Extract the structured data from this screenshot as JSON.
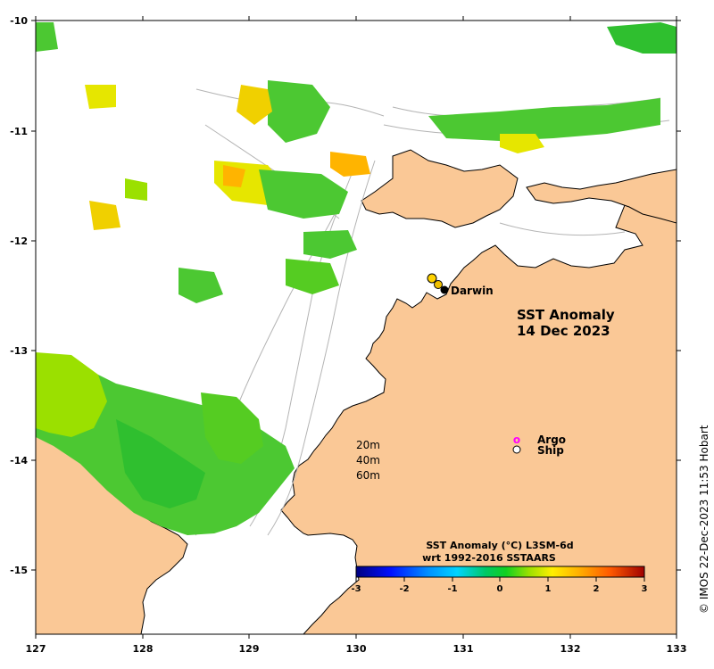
{
  "title": {
    "line1": "SST Anomaly",
    "line2": "14 Dec 2023"
  },
  "place_label": "Darwin",
  "x_axis": {
    "ticks": [
      "127",
      "128",
      "129",
      "130",
      "131",
      "132",
      "133"
    ]
  },
  "y_axis": {
    "ticks": [
      "-10",
      "-11",
      "-12",
      "-13",
      "-14",
      "-15"
    ]
  },
  "legend": {
    "argo": "Argo",
    "argo_marker": "o",
    "ship": "Ship"
  },
  "depth_contours": [
    "20m",
    "40m",
    "60m"
  ],
  "colorbar": {
    "title_line1": "SST Anomaly (°C) L3SM-6d",
    "title_line2": "wrt 1992-2016 SSTAARS",
    "ticks": [
      "-3",
      "-2",
      "-1",
      "0",
      "1",
      "2",
      "3"
    ],
    "range": [
      -3,
      3
    ]
  },
  "credit": "© IMOS 22-Dec-2023 11:53 Hobart",
  "colors": {
    "land": "#fac896",
    "ocean_nodata": "#ffffff",
    "contour": "#b4b4b4",
    "argo": "#ff00ff"
  }
}
